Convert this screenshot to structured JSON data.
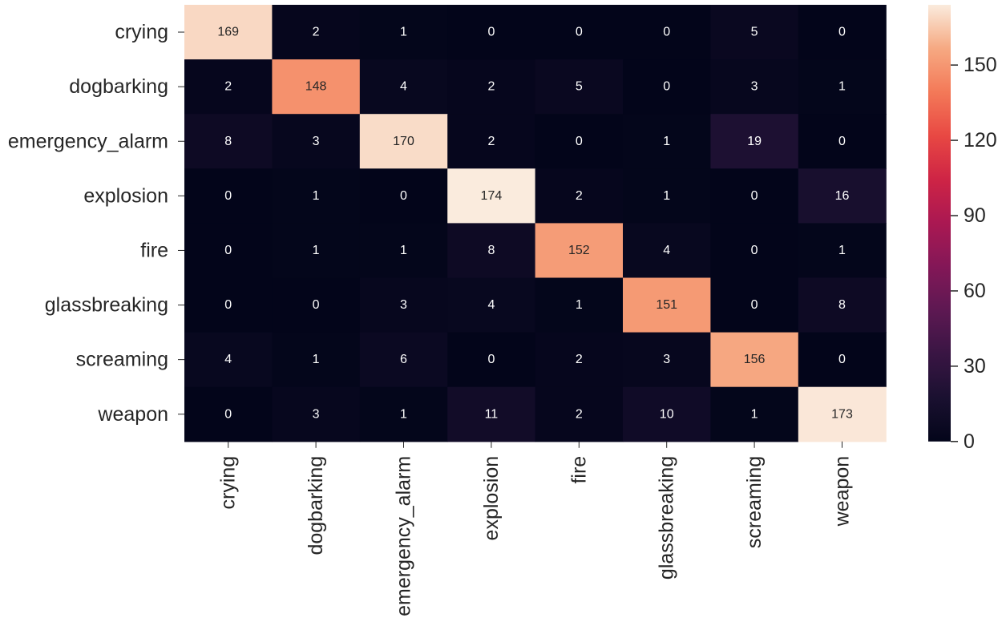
{
  "chart_data": {
    "type": "heatmap",
    "title": "",
    "xlabel": "",
    "ylabel": "",
    "rows": [
      "crying",
      "dogbarking",
      "emergency_alarm",
      "explosion",
      "fire",
      "glassbreaking",
      "screaming",
      "weapon"
    ],
    "cols": [
      "crying",
      "dogbarking",
      "emergency_alarm",
      "explosion",
      "fire",
      "glassbreaking",
      "screaming",
      "weapon"
    ],
    "values": [
      [
        169,
        2,
        1,
        0,
        0,
        0,
        5,
        0
      ],
      [
        2,
        148,
        4,
        2,
        5,
        0,
        3,
        1
      ],
      [
        8,
        3,
        170,
        2,
        0,
        1,
        19,
        0
      ],
      [
        0,
        1,
        0,
        174,
        2,
        1,
        0,
        16
      ],
      [
        0,
        1,
        1,
        8,
        152,
        4,
        0,
        1
      ],
      [
        0,
        0,
        3,
        4,
        1,
        151,
        0,
        8
      ],
      [
        4,
        1,
        6,
        0,
        2,
        3,
        156,
        0
      ],
      [
        0,
        3,
        1,
        11,
        2,
        10,
        1,
        173
      ]
    ],
    "colorbar": {
      "min": 0,
      "max": 174,
      "ticks": [
        0,
        30,
        60,
        90,
        120,
        150
      ]
    },
    "colormap": "rocket",
    "colors": {
      "annotation_dark": "#262626",
      "annotation_light": "#ffffff",
      "axis_text": "#262626"
    }
  }
}
